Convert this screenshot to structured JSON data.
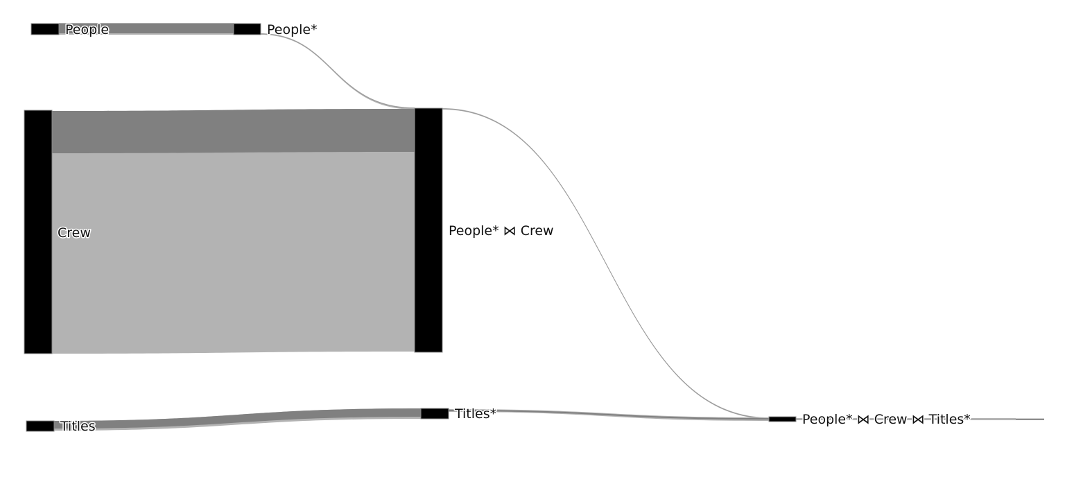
{
  "diagram": {
    "type": "sankey",
    "nodes": [
      {
        "id": "people",
        "label": "People"
      },
      {
        "id": "people_star",
        "label": "People*"
      },
      {
        "id": "crew",
        "label": "Crew"
      },
      {
        "id": "people_crew",
        "label": "People* ⋈ Crew"
      },
      {
        "id": "titles",
        "label": "Titles"
      },
      {
        "id": "titles_star",
        "label": "Titles*"
      },
      {
        "id": "people_crew_titles",
        "label": "People* ⋈ Crew ⋈ Titles*"
      }
    ],
    "links": [
      {
        "from": "people",
        "to": "people_star"
      },
      {
        "from": "people_star",
        "to": "people_crew"
      },
      {
        "from": "crew",
        "to": "people_crew"
      },
      {
        "from": "people_crew",
        "to": "people_crew_titles"
      },
      {
        "from": "titles",
        "to": "titles_star"
      },
      {
        "from": "titles_star",
        "to": "people_crew_titles"
      }
    ],
    "colors": {
      "node": "#000000",
      "link_light": "#b3b3b3",
      "link_dark": "#808080",
      "background": "#ffffff"
    }
  }
}
